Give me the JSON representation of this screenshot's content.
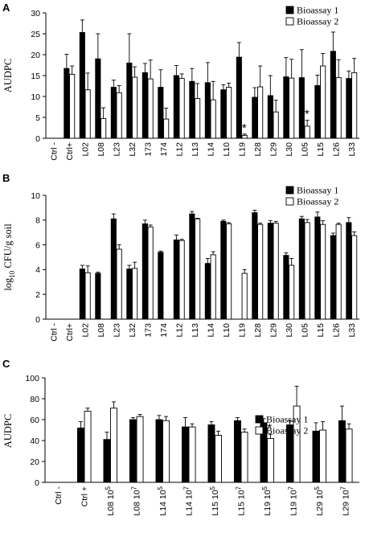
{
  "colors": {
    "bioassay1": "#000000",
    "bioassay2": "#ffffff",
    "axis": "#000000"
  },
  "chart_data": [
    {
      "type": "bar",
      "panel": "A",
      "ylabel": "AUDPC",
      "ylim": [
        0,
        30
      ],
      "yticks": [
        0,
        5,
        10,
        15,
        20,
        25,
        30
      ],
      "legend_placement": "top-right",
      "categories": [
        "Ctrl -",
        "Ctrl+",
        "L02",
        "L08",
        "L23",
        "L32",
        "173",
        "174",
        "L12",
        "L13",
        "L14",
        "L10",
        "L19",
        "L28",
        "L29",
        "L30",
        "L05",
        "L15",
        "L26",
        "L33"
      ],
      "series": [
        {
          "name": "Bioassay 1",
          "values": [
            0,
            16.7,
            25.3,
            19.0,
            12.2,
            18.0,
            15.7,
            12.2,
            15.0,
            13.6,
            13.3,
            11.6,
            19.4,
            9.8,
            10.2,
            14.7,
            14.5,
            12.6,
            20.8,
            14.3
          ],
          "errors": [
            0,
            3.4,
            3.0,
            6.0,
            1.7,
            7.0,
            2.2,
            4.2,
            2.4,
            3.1,
            4.8,
            1.2,
            3.5,
            2.3,
            4.8,
            4.6,
            6.7,
            2.5,
            4.6,
            1.8
          ]
        },
        {
          "name": "Bioassay 2",
          "values": [
            0,
            15.3,
            11.6,
            4.7,
            10.9,
            14.6,
            14.2,
            4.6,
            14.3,
            9.5,
            9.2,
            12.2,
            0.7,
            12.3,
            6.3,
            14.4,
            2.9,
            17.3,
            14.5,
            15.7
          ],
          "errors": [
            0,
            2.0,
            4.0,
            2.6,
            1.7,
            2.5,
            4.5,
            2.6,
            1.1,
            3.6,
            4.4,
            1.0,
            0.3,
            5.0,
            2.8,
            4.5,
            1.4,
            3.0,
            4.3,
            3.4
          ]
        }
      ],
      "annotations": [
        {
          "text": "*",
          "category": "L19"
        },
        {
          "text": "*",
          "category": "L05"
        }
      ]
    },
    {
      "type": "bar",
      "panel": "B",
      "ylabel": "log10 CFU/g soil",
      "ylabel_main": "log",
      "ylabel_sub": "10",
      "ylabel_rest": " CFU/g soil",
      "ylim": [
        0,
        10
      ],
      "yticks": [
        0,
        2,
        4,
        6,
        8,
        10
      ],
      "legend_placement": "top-right",
      "categories": [
        "Ctrl -",
        "Ctrl+",
        "L02",
        "L08",
        "L23",
        "L32",
        "173",
        "174",
        "L12",
        "L13",
        "L14",
        "L10",
        "L19",
        "L28",
        "L29",
        "L30",
        "L05",
        "L15",
        "L26",
        "L33"
      ],
      "series": [
        {
          "name": "Bioassay 1",
          "values": [
            0,
            0,
            4.05,
            3.7,
            8.1,
            4.05,
            7.7,
            5.4,
            6.4,
            8.5,
            4.5,
            7.9,
            0,
            8.6,
            7.75,
            5.15,
            8.1,
            8.25,
            6.75,
            7.8
          ],
          "errors": [
            0,
            0,
            0.3,
            0.1,
            0.4,
            0.3,
            0.3,
            0.1,
            0.4,
            0.2,
            0.4,
            0.1,
            0,
            0.2,
            0.2,
            0.2,
            0.2,
            0.4,
            0.2,
            0.4
          ]
        },
        {
          "name": "Bioassay 2",
          "values": [
            0,
            0,
            3.75,
            0,
            5.65,
            4.1,
            7.45,
            0,
            6.35,
            8.1,
            5.2,
            7.7,
            3.7,
            7.65,
            7.75,
            4.35,
            7.8,
            7.65,
            7.65,
            6.75
          ],
          "errors": [
            0,
            0,
            0.55,
            0,
            0.35,
            0.5,
            0.15,
            0,
            0.1,
            0.05,
            0.25,
            0.1,
            0.3,
            0.1,
            0.15,
            0.55,
            0.25,
            0.3,
            0.1,
            0.3
          ]
        }
      ]
    },
    {
      "type": "bar",
      "panel": "C",
      "ylabel": "AUDPC",
      "ylim": [
        0,
        100
      ],
      "yticks": [
        0,
        20,
        40,
        60,
        80,
        100
      ],
      "legend_placement": "top-right",
      "categories": [
        "Ctrl -",
        "Ctrl +",
        "L08 10^5",
        "L08 10^7",
        "L14 10^5",
        "L14 10^7",
        "L15 10^5",
        "L15 10^7",
        "L19 10^5",
        "L19 10^7",
        "L29 10^5",
        "L29 10^7"
      ],
      "category_labels": [
        {
          "main": "Ctrl -",
          "sup": ""
        },
        {
          "main": "Ctrl +",
          "sup": ""
        },
        {
          "main": "L08 10",
          "sup": "5"
        },
        {
          "main": "L08 10",
          "sup": "7"
        },
        {
          "main": "L14 10",
          "sup": "5"
        },
        {
          "main": "L14 10",
          "sup": "7"
        },
        {
          "main": "L15 10",
          "sup": "5"
        },
        {
          "main": "L15 10",
          "sup": "7"
        },
        {
          "main": "L19 10",
          "sup": "5"
        },
        {
          "main": "L19 10",
          "sup": "7"
        },
        {
          "main": "L29 10",
          "sup": "5"
        },
        {
          "main": "L29 10",
          "sup": "7"
        }
      ],
      "series": [
        {
          "name": "Bioassay 1",
          "values": [
            0,
            52,
            41,
            60,
            60,
            53,
            55,
            59,
            57,
            55,
            49,
            59
          ],
          "errors": [
            0,
            6,
            7,
            2,
            4,
            9,
            3,
            3,
            4,
            4,
            8,
            14
          ]
        },
        {
          "name": "Bioassay 2",
          "values": [
            0,
            68,
            71,
            63,
            59,
            53,
            45,
            48,
            42,
            73,
            50,
            51
          ],
          "errors": [
            0,
            3,
            6,
            2,
            4,
            3,
            4,
            3,
            4,
            19,
            8,
            5
          ]
        }
      ],
      "annotations": [
        {
          "text": "*",
          "category": "L19 10^5"
        }
      ]
    }
  ]
}
